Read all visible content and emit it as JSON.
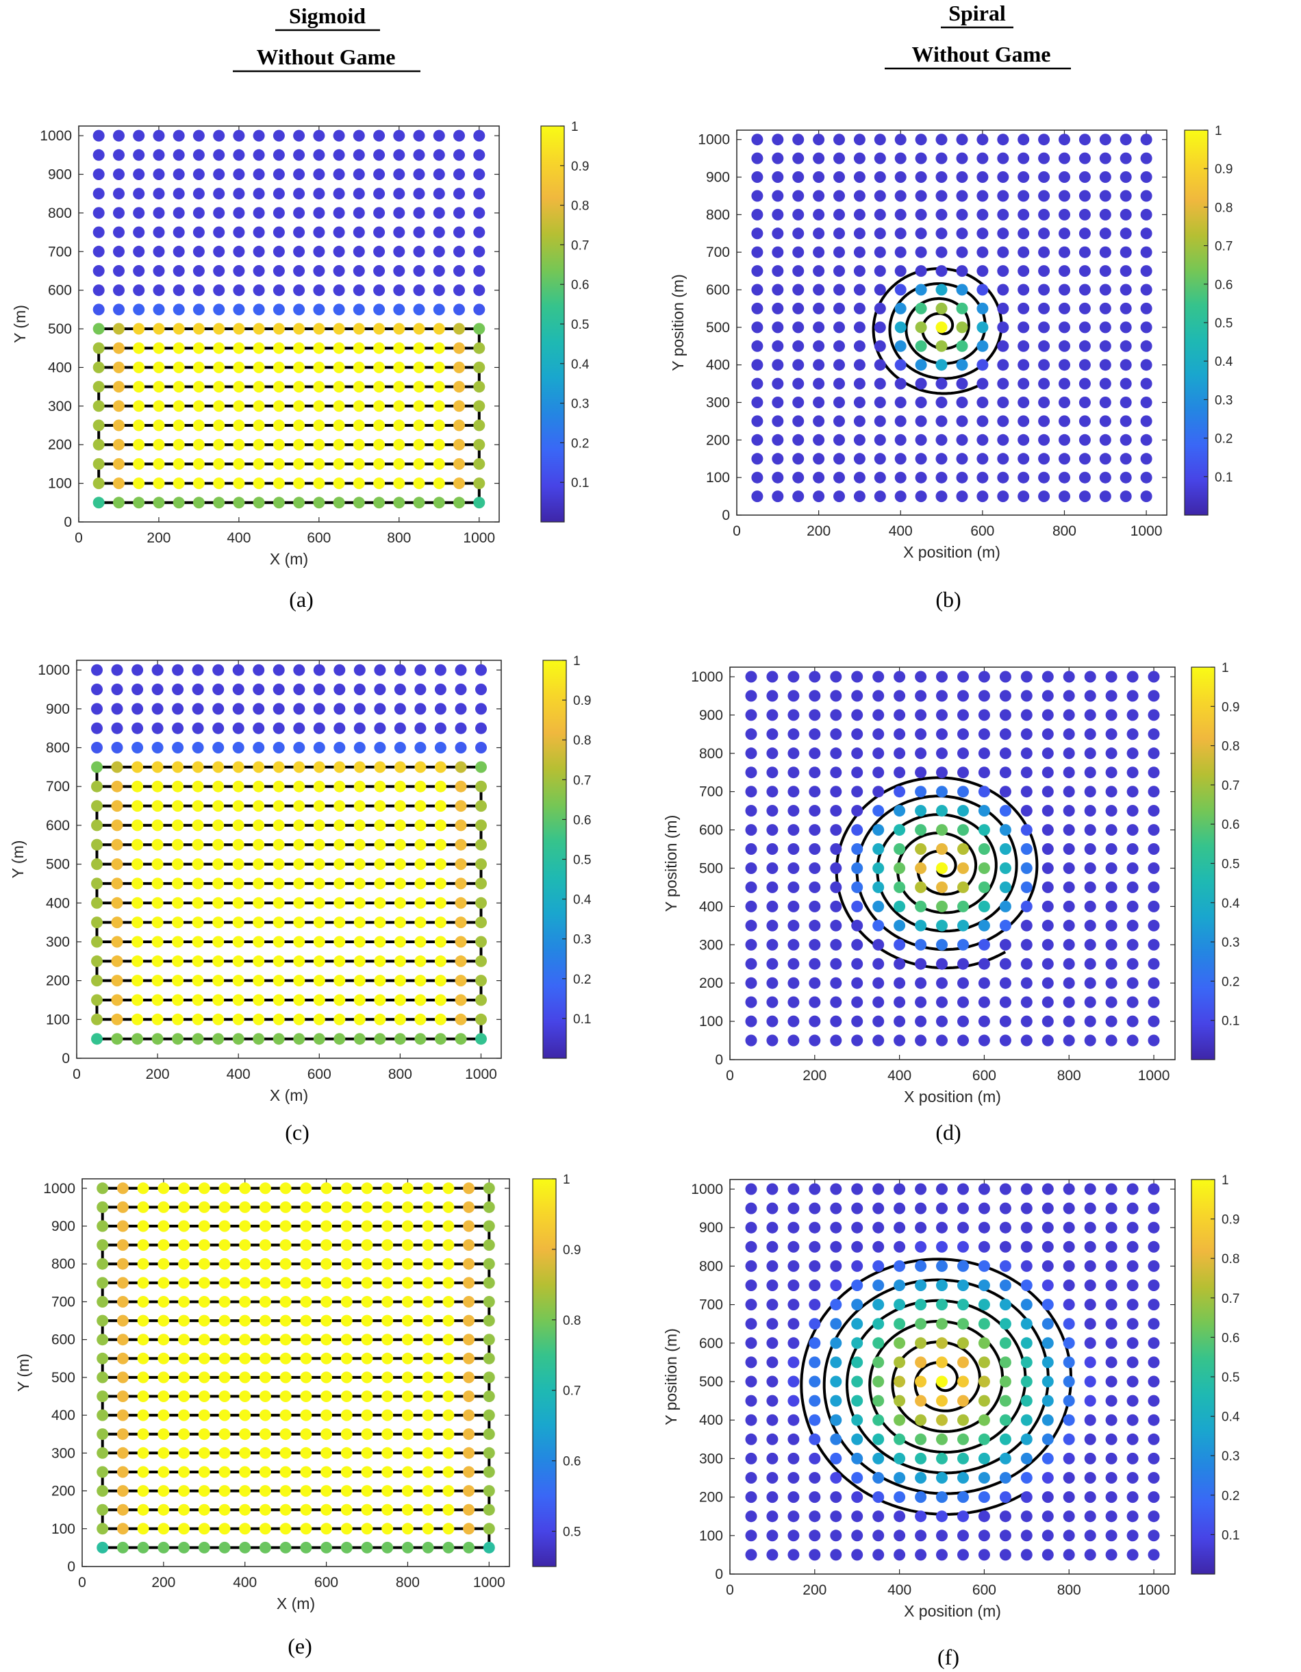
{
  "headers": [
    {
      "title": "Sigmoid",
      "subtitle": "Without Game"
    },
    {
      "title": "Spiral",
      "subtitle": "Without Game"
    }
  ],
  "chart_data": [
    {
      "id": "a",
      "caption": "(a)",
      "type": "scatter",
      "pattern": "sigmoid",
      "xlabel": "X (m)",
      "ylabel": "Y (m)",
      "xlim": [
        0,
        1050
      ],
      "ylim": [
        0,
        1025
      ],
      "xticks": [
        0,
        200,
        400,
        600,
        800,
        1000
      ],
      "yticks": [
        0,
        100,
        200,
        300,
        400,
        500,
        600,
        700,
        800,
        900,
        1000
      ],
      "grid": {
        "x_start": 50,
        "x_step": 50,
        "x_count": 20,
        "y_start": 50,
        "y_step": 50,
        "y_count": 20
      },
      "value_function": {
        "kind": "sigmoid",
        "boundary_y": 525,
        "steepness": 0.085,
        "low": 0.07,
        "high": 1.0,
        "edge_falloff": 0.48
      },
      "path": {
        "kind": "serpentine",
        "y_min": 50,
        "y_max": 500,
        "x_min": 50,
        "x_max": 1000
      },
      "colorbar": {
        "range": [
          0,
          1
        ],
        "ticks": [
          0.1,
          0.2,
          0.3,
          0.4,
          0.5,
          0.6,
          0.7,
          0.8,
          0.9,
          1
        ],
        "tick_labels": [
          "0.1",
          "0.2",
          "0.3",
          "0.4",
          "0.5",
          "0.6",
          "0.7",
          "0.8",
          "0.9",
          "1"
        ]
      },
      "grid_lines": false
    },
    {
      "id": "b",
      "caption": "(b)",
      "type": "scatter",
      "pattern": "spiral",
      "xlabel": "X position (m)",
      "ylabel": "Y position (m)",
      "xlim": [
        0,
        1050
      ],
      "ylim": [
        0,
        1025
      ],
      "xticks": [
        0,
        200,
        400,
        600,
        800,
        1000
      ],
      "yticks": [
        0,
        100,
        200,
        300,
        400,
        500,
        600,
        700,
        800,
        900,
        1000
      ],
      "grid": {
        "x_start": 50,
        "x_step": 50,
        "x_count": 20,
        "y_start": 50,
        "y_step": 50,
        "y_count": 20
      },
      "value_function": {
        "kind": "radial",
        "center": [
          500,
          500
        ],
        "radius": 160,
        "floor": 0.06
      },
      "path": {
        "kind": "spiral",
        "center": [
          500,
          500
        ],
        "r_max": 180,
        "turns": 4.5
      },
      "colorbar": {
        "range": [
          0,
          1
        ],
        "ticks": [
          0.1,
          0.2,
          0.3,
          0.4,
          0.5,
          0.6,
          0.7,
          0.8,
          0.9,
          1
        ],
        "tick_labels": [
          "0.1",
          "0.2",
          "0.3",
          "0.4",
          "0.5",
          "0.6",
          "0.7",
          "0.8",
          "0.9",
          "1"
        ]
      },
      "grid_lines": false
    },
    {
      "id": "c",
      "caption": "(c)",
      "type": "scatter",
      "pattern": "sigmoid",
      "xlabel": "X (m)",
      "ylabel": "Y (m)",
      "xlim": [
        0,
        1050
      ],
      "ylim": [
        0,
        1025
      ],
      "xticks": [
        0,
        200,
        400,
        600,
        800,
        1000
      ],
      "yticks": [
        0,
        100,
        200,
        300,
        400,
        500,
        600,
        700,
        800,
        900,
        1000
      ],
      "grid": {
        "x_start": 50,
        "x_step": 50,
        "x_count": 20,
        "y_start": 50,
        "y_step": 50,
        "y_count": 20
      },
      "value_function": {
        "kind": "sigmoid",
        "boundary_y": 775,
        "steepness": 0.085,
        "low": 0.07,
        "high": 1.0,
        "edge_falloff": 0.48
      },
      "path": {
        "kind": "serpentine",
        "y_min": 50,
        "y_max": 750,
        "x_min": 50,
        "x_max": 1000
      },
      "colorbar": {
        "range": [
          0,
          1
        ],
        "ticks": [
          0.1,
          0.2,
          0.3,
          0.4,
          0.5,
          0.6,
          0.7,
          0.8,
          0.9,
          1
        ],
        "tick_labels": [
          "0.1",
          "0.2",
          "0.3",
          "0.4",
          "0.5",
          "0.6",
          "0.7",
          "0.8",
          "0.9",
          "1"
        ]
      },
      "grid_lines": false
    },
    {
      "id": "d",
      "caption": "(d)",
      "type": "scatter",
      "pattern": "spiral",
      "xlabel": "X position (m)",
      "ylabel": "Y position (m)",
      "xlim": [
        0,
        1050
      ],
      "ylim": [
        0,
        1025
      ],
      "xticks": [
        0,
        200,
        400,
        600,
        800,
        1000
      ],
      "yticks": [
        0,
        100,
        200,
        300,
        400,
        500,
        600,
        700,
        800,
        900,
        1000
      ],
      "grid": {
        "x_start": 50,
        "x_step": 50,
        "x_count": 20,
        "y_start": 50,
        "y_step": 50,
        "y_count": 20
      },
      "value_function": {
        "kind": "radial",
        "center": [
          500,
          500
        ],
        "radius": 260,
        "floor": 0.06
      },
      "path": {
        "kind": "spiral",
        "center": [
          500,
          500
        ],
        "r_max": 265,
        "turns": 5.5
      },
      "colorbar": {
        "range": [
          0,
          1
        ],
        "ticks": [
          0.1,
          0.2,
          0.3,
          0.4,
          0.5,
          0.6,
          0.7,
          0.8,
          0.9,
          1
        ],
        "tick_labels": [
          "0.1",
          "0.2",
          "0.3",
          "0.4",
          "0.5",
          "0.6",
          "0.7",
          "0.8",
          "0.9",
          "1"
        ]
      },
      "grid_lines": false
    },
    {
      "id": "e",
      "caption": "(e)",
      "type": "scatter",
      "pattern": "sigmoid",
      "xlabel": "X (m)",
      "ylabel": "Y (m)",
      "xlim": [
        0,
        1050
      ],
      "ylim": [
        0,
        1025
      ],
      "xticks": [
        0,
        200,
        400,
        600,
        800,
        1000
      ],
      "yticks": [
        0,
        100,
        200,
        300,
        400,
        500,
        600,
        700,
        800,
        900,
        1000
      ],
      "grid": {
        "x_start": 50,
        "x_step": 50,
        "x_count": 20,
        "y_start": 50,
        "y_step": 50,
        "y_count": 20
      },
      "value_function": {
        "kind": "sigmoid",
        "boundary_y": 2000,
        "steepness": 0.085,
        "low": 0.45,
        "high": 1.0,
        "edge_falloff": 0.48
      },
      "path": {
        "kind": "serpentine",
        "y_min": 50,
        "y_max": 1000,
        "x_min": 50,
        "x_max": 1000
      },
      "colorbar": {
        "range": [
          0.45,
          1
        ],
        "ticks": [
          0.5,
          0.6,
          0.7,
          0.8,
          0.9,
          1
        ],
        "tick_labels": [
          "0.5",
          "0.6",
          "0.7",
          "0.8",
          "0.9",
          "1"
        ]
      },
      "grid_lines": false
    },
    {
      "id": "f",
      "caption": "(f)",
      "type": "scatter",
      "pattern": "spiral",
      "xlabel": "X position (m)",
      "ylabel": "Y position (m)",
      "xlim": [
        0,
        1050
      ],
      "ylim": [
        0,
        1025
      ],
      "xticks": [
        0,
        200,
        400,
        600,
        800,
        1000
      ],
      "yticks": [
        0,
        100,
        200,
        300,
        400,
        500,
        600,
        700,
        800,
        900,
        1000
      ],
      "grid": {
        "x_start": 50,
        "x_step": 50,
        "x_count": 20,
        "y_start": 50,
        "y_step": 50,
        "y_count": 20
      },
      "value_function": {
        "kind": "radial",
        "center": [
          500,
          500
        ],
        "radius": 390,
        "floor": 0.06
      },
      "path": {
        "kind": "spiral",
        "center": [
          500,
          500
        ],
        "r_max": 350,
        "turns": 6.5
      },
      "colorbar": {
        "range": [
          0,
          1
        ],
        "ticks": [
          0.1,
          0.2,
          0.3,
          0.4,
          0.5,
          0.6,
          0.7,
          0.8,
          0.9,
          1
        ],
        "tick_labels": [
          "0.1",
          "0.2",
          "0.3",
          "0.4",
          "0.5",
          "0.6",
          "0.7",
          "0.8",
          "0.9",
          "1"
        ]
      },
      "grid_lines": false
    }
  ],
  "colors": {
    "path": "#000000",
    "colormap": [
      "#3e26a8",
      "#4744e6",
      "#3a67f6",
      "#2486e2",
      "#1aa6ce",
      "#1fb9b2",
      "#36c38c",
      "#76c655",
      "#b6bf33",
      "#f0b83e",
      "#f7d52a",
      "#f9fb15"
    ]
  }
}
